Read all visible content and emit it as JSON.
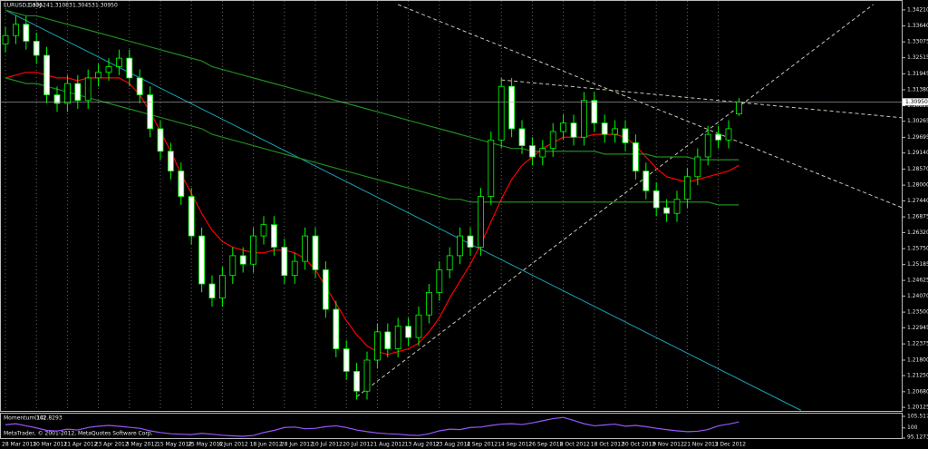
{
  "chart_data": {
    "type": "candlestick",
    "symbol": "EURUSD,Daily",
    "ohlc_labels": [
      "1.30524",
      "1.31083",
      "1.30453",
      "1.30950"
    ],
    "categories": [
      "28 Mar 2012",
      null,
      null,
      "30 Mar 2012",
      null,
      null,
      "11 Apr 2012",
      null,
      null,
      "23 Apr 2012",
      null,
      null,
      "3 May 2012",
      null,
      null,
      "15 May 2012",
      null,
      null,
      "25 May 2012",
      null,
      null,
      "6 Jun 2012",
      null,
      null,
      "18 Jun 2012",
      null,
      null,
      "28 Jun 2012",
      null,
      null,
      "10 Jul 2012",
      null,
      null,
      "20 Jul 2012",
      null,
      null,
      "1 Aug 2012",
      null,
      null,
      "13 Aug 2012",
      null,
      null,
      "23 Aug 2012",
      null,
      null,
      "4 Sep 2012",
      null,
      null,
      "14 Sep 2012",
      null,
      null,
      "26 Sep 2012",
      null,
      null,
      "8 Oct 2012",
      null,
      null,
      "18 Oct 2012",
      null,
      null,
      "30 Oct 2012",
      null,
      null,
      "9 Nov 2012",
      null,
      null,
      "21 Nov 2012",
      null,
      null,
      "3 Dec 2012",
      null,
      null
    ],
    "open": [
      1.33,
      1.333,
      1.337,
      1.331,
      1.326,
      1.312,
      1.309,
      1.316,
      1.31,
      1.318,
      1.32,
      1.322,
      1.325,
      1.318,
      1.312,
      1.3,
      1.292,
      1.285,
      1.276,
      1.262,
      1.245,
      1.24,
      1.248,
      1.255,
      1.252,
      1.262,
      1.266,
      1.258,
      1.248,
      1.253,
      1.262,
      1.25,
      1.236,
      1.222,
      1.214,
      1.207,
      1.218,
      1.228,
      1.222,
      1.23,
      1.226,
      1.234,
      1.242,
      1.25,
      1.255,
      1.262,
      1.258,
      1.276,
      1.296,
      1.315,
      1.3,
      1.294,
      1.29,
      1.293,
      1.299,
      1.302,
      1.297,
      1.31,
      1.302,
      1.298,
      1.3,
      1.295,
      1.285,
      1.278,
      1.272,
      1.27,
      1.275,
      1.283,
      1.29,
      1.298,
      1.296,
      1.30524
    ],
    "high": [
      1.336,
      1.34,
      1.34,
      1.334,
      1.329,
      1.315,
      1.319,
      1.319,
      1.321,
      1.323,
      1.325,
      1.328,
      1.328,
      1.321,
      1.315,
      1.303,
      1.295,
      1.288,
      1.279,
      1.265,
      1.248,
      1.251,
      1.258,
      1.258,
      1.265,
      1.269,
      1.269,
      1.261,
      1.256,
      1.265,
      1.265,
      1.253,
      1.239,
      1.225,
      1.217,
      1.221,
      1.231,
      1.231,
      1.233,
      1.233,
      1.237,
      1.245,
      1.253,
      1.258,
      1.265,
      1.265,
      1.279,
      1.299,
      1.318,
      1.318,
      1.303,
      1.297,
      1.296,
      1.302,
      1.305,
      1.305,
      1.313,
      1.313,
      1.305,
      1.303,
      1.303,
      1.298,
      1.288,
      1.281,
      1.275,
      1.278,
      1.286,
      1.293,
      1.301,
      1.301,
      1.303,
      1.31083
    ],
    "low": [
      1.327,
      1.33,
      1.328,
      1.323,
      1.309,
      1.306,
      1.306,
      1.307,
      1.307,
      1.315,
      1.317,
      1.319,
      1.315,
      1.309,
      1.297,
      1.289,
      1.282,
      1.273,
      1.259,
      1.242,
      1.237,
      1.237,
      1.245,
      1.249,
      1.249,
      1.259,
      1.255,
      1.245,
      1.245,
      1.25,
      1.247,
      1.233,
      1.219,
      1.211,
      1.204,
      1.204,
      1.215,
      1.219,
      1.219,
      1.223,
      1.223,
      1.231,
      1.239,
      1.247,
      1.252,
      1.255,
      1.255,
      1.273,
      1.293,
      1.297,
      1.291,
      1.287,
      1.287,
      1.29,
      1.296,
      1.294,
      1.294,
      1.299,
      1.295,
      1.295,
      1.292,
      1.282,
      1.275,
      1.269,
      1.267,
      1.267,
      1.272,
      1.28,
      1.287,
      1.293,
      1.293,
      1.30453
    ],
    "close": [
      1.333,
      1.337,
      1.331,
      1.326,
      1.312,
      1.309,
      1.316,
      1.31,
      1.318,
      1.32,
      1.322,
      1.325,
      1.318,
      1.312,
      1.3,
      1.292,
      1.285,
      1.276,
      1.262,
      1.245,
      1.24,
      1.248,
      1.255,
      1.252,
      1.262,
      1.266,
      1.258,
      1.248,
      1.253,
      1.262,
      1.25,
      1.236,
      1.222,
      1.214,
      1.207,
      1.218,
      1.228,
      1.222,
      1.23,
      1.226,
      1.234,
      1.242,
      1.25,
      1.255,
      1.262,
      1.258,
      1.276,
      1.296,
      1.315,
      1.3,
      1.294,
      1.29,
      1.293,
      1.299,
      1.302,
      1.297,
      1.31,
      1.302,
      1.298,
      1.3,
      1.295,
      1.285,
      1.278,
      1.272,
      1.27,
      1.275,
      1.283,
      1.29,
      1.298,
      1.296,
      1.3,
      1.3095
    ],
    "up_color": "#000000",
    "down_color": "#ffffff",
    "wick_color": "#00ff00",
    "lines": [
      {
        "color": "#ff0000",
        "values": [
          1.318,
          1.319,
          1.32,
          1.32,
          1.319,
          1.318,
          1.318,
          1.317,
          1.318,
          1.318,
          1.318,
          1.318,
          1.316,
          1.312,
          1.306,
          1.299,
          1.292,
          1.284,
          1.277,
          1.27,
          1.264,
          1.26,
          1.258,
          1.257,
          1.256,
          1.256,
          1.257,
          1.257,
          1.256,
          1.254,
          1.25,
          1.244,
          1.238,
          1.232,
          1.227,
          1.223,
          1.221,
          1.22,
          1.221,
          1.222,
          1.224,
          1.228,
          1.233,
          1.24,
          1.246,
          1.252,
          1.259,
          1.267,
          1.275,
          1.282,
          1.287,
          1.29,
          1.293,
          1.295,
          1.297,
          1.297,
          1.297,
          1.298,
          1.298,
          1.298,
          1.297,
          1.294,
          1.29,
          1.286,
          1.283,
          1.282,
          1.281,
          1.282,
          1.283,
          1.284,
          1.285,
          1.287
        ]
      },
      {
        "color": "#1f8a1f",
        "values": [
          1.342,
          1.341,
          1.34,
          1.34,
          1.339,
          1.338,
          1.337,
          1.336,
          1.335,
          1.334,
          1.333,
          1.332,
          1.331,
          1.33,
          1.329,
          1.328,
          1.327,
          1.326,
          1.325,
          1.324,
          1.322,
          1.321,
          1.32,
          1.319,
          1.318,
          1.317,
          1.316,
          1.315,
          1.314,
          1.313,
          1.312,
          1.311,
          1.31,
          1.309,
          1.308,
          1.307,
          1.306,
          1.305,
          1.304,
          1.303,
          1.302,
          1.301,
          1.3,
          1.299,
          1.298,
          1.297,
          1.296,
          1.295,
          1.294,
          1.293,
          1.293,
          1.292,
          1.292,
          1.292,
          1.292,
          1.292,
          1.292,
          1.292,
          1.291,
          1.291,
          1.291,
          1.291,
          1.291,
          1.29,
          1.29,
          1.29,
          1.29,
          1.289,
          1.289,
          1.289,
          1.289,
          1.289
        ]
      },
      {
        "color": "#1f8a1f",
        "values": [
          1.318,
          1.317,
          1.316,
          1.316,
          1.315,
          1.314,
          1.313,
          1.312,
          1.311,
          1.31,
          1.309,
          1.308,
          1.307,
          1.306,
          1.305,
          1.304,
          1.303,
          1.302,
          1.301,
          1.3,
          1.298,
          1.297,
          1.296,
          1.295,
          1.294,
          1.293,
          1.292,
          1.291,
          1.29,
          1.289,
          1.288,
          1.287,
          1.286,
          1.285,
          1.284,
          1.283,
          1.282,
          1.281,
          1.28,
          1.279,
          1.278,
          1.277,
          1.276,
          1.275,
          1.275,
          1.274,
          1.274,
          1.274,
          1.274,
          1.274,
          1.274,
          1.274,
          1.274,
          1.274,
          1.274,
          1.274,
          1.274,
          1.274,
          1.274,
          1.274,
          1.274,
          1.274,
          1.274,
          1.274,
          1.274,
          1.274,
          1.274,
          1.274,
          1.274,
          1.273,
          1.273,
          1.273
        ]
      }
    ],
    "trend_lines": [
      {
        "color": "#1aa0b4",
        "dashed": false,
        "x": [
          0,
          77
        ],
        "y": [
          1.342,
          1.2002
        ]
      },
      {
        "color": "#c8c8b4",
        "dashed": true,
        "x": [
          34,
          84
        ],
        "y": [
          1.205,
          1.344
        ]
      },
      {
        "color": "#c8c8b4",
        "dashed": true,
        "x": [
          48,
          87
        ],
        "y": [
          1.3173,
          1.3038
        ]
      },
      {
        "color": "#c8c8b4",
        "dashed": true,
        "x": [
          38,
          87
        ],
        "y": [
          1.344,
          1.2717
        ]
      }
    ],
    "ylim": [
      1.2,
      1.344
    ],
    "yticks": [
      {
        "value": 1.3421,
        "label": "1.34210"
      },
      {
        "value": 1.3364,
        "label": "1.33640"
      },
      1.33075,
      1.32515,
      1.31945,
      {
        "value": 1.3138,
        "label": "1.31380"
      },
      1.30815,
      1.30265,
      1.29695,
      {
        "value": 1.2914,
        "label": "1.29140"
      },
      {
        "value": 1.2857,
        "label": "1.28570"
      },
      {
        "value": 1.28,
        "label": "1.28000"
      },
      {
        "value": 1.2744,
        "label": "1.27440"
      },
      1.26875,
      {
        "value": 1.2632,
        "label": "1.26320"
      },
      {
        "value": 1.2575,
        "label": "1.25750"
      },
      1.25185,
      1.24625,
      {
        "value": 1.2407,
        "label": "1.24070"
      },
      {
        "value": 1.235,
        "label": "1.23500"
      },
      1.22945,
      1.22375,
      {
        "value": 1.218,
        "label": "1.21800"
      },
      {
        "value": 1.2125,
        "label": "1.21250"
      },
      {
        "value": 1.2068,
        "label": "1.20680"
      },
      1.20125
    ],
    "grid": true,
    "momentum": {
      "label": "Momentum(14)",
      "color": "#9955ff",
      "values": [
        101.5,
        102.0,
        101.0,
        100.0,
        98.8,
        98.5,
        99.4,
        99.0,
        100.2,
        100.8,
        101.2,
        100.8,
        100.3,
        99.8,
        98.6,
        97.8,
        97.2,
        97.0,
        96.8,
        97.4,
        97.0,
        96.5,
        96.2,
        96.0,
        96.4,
        97.8,
        98.8,
        100.2,
        100.4,
        99.6,
        99.8,
        100.6,
        101.0,
        100.2,
        99.0,
        98.2,
        97.6,
        97.2,
        97.0,
        96.6,
        96.4,
        97.2,
        98.6,
        99.4,
        99.2,
        100.2,
        100.4,
        101.2,
        101.8,
        102.0,
        101.6,
        102.4,
        103.4,
        104.4,
        105.0,
        103.6,
        102.0,
        101.0,
        101.4,
        101.8,
        100.8,
        101.2,
        100.6,
        99.8,
        99.2,
        98.6,
        98.2,
        98.4,
        99.2,
        101.0,
        101.8,
        102.8293
      ],
      "ylim": [
        95.1273,
        105.517
      ],
      "yticks": [
        105.517,
        100,
        95.1273
      ]
    },
    "footer": "MetaTrader, © 2001-2012, MetaQuotes Software Corp."
  }
}
